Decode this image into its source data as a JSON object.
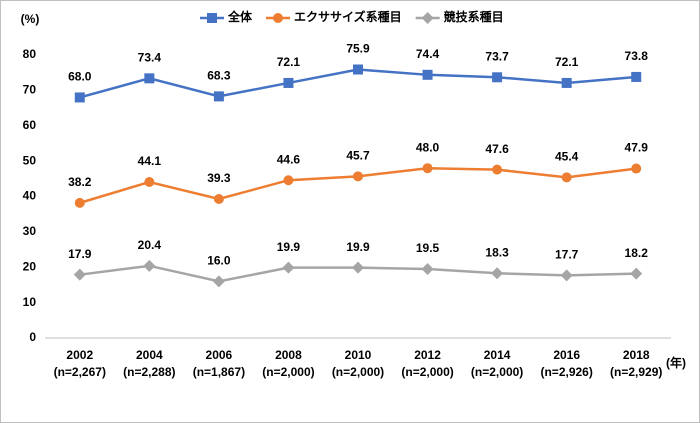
{
  "chart_data": {
    "type": "line",
    "y_axis_label": "(%)",
    "x_axis_unit": "(年)",
    "categories": [
      "2002",
      "2004",
      "2006",
      "2008",
      "2010",
      "2012",
      "2014",
      "2016",
      "2018"
    ],
    "sample_sizes": [
      "(n=2,267)",
      "(n=2,288)",
      "(n=1,867)",
      "(n=2,000)",
      "(n=2,000)",
      "(n=2,000)",
      "(n=2,000)",
      "(n=2,926)",
      "(n=2,929)"
    ],
    "ylim": [
      0,
      80
    ],
    "yticks": [
      0,
      10,
      20,
      30,
      40,
      50,
      60,
      70,
      80
    ],
    "grid": false,
    "legend": "top",
    "series": [
      {
        "name": "全体",
        "color": "#4472c4",
        "marker": "square",
        "values": [
          68.0,
          73.4,
          68.3,
          72.1,
          75.9,
          74.4,
          73.7,
          72.1,
          73.8
        ],
        "value_labels": [
          "68.0",
          "73.4",
          "68.3",
          "72.1",
          "75.9",
          "74.4",
          "73.7",
          "72.1",
          "73.8"
        ]
      },
      {
        "name": "エクササイズ系種目",
        "color": "#ed7d31",
        "marker": "circle",
        "values": [
          38.2,
          44.1,
          39.3,
          44.6,
          45.7,
          48.0,
          47.6,
          45.4,
          47.9
        ],
        "value_labels": [
          "38.2",
          "44.1",
          "39.3",
          "44.6",
          "45.7",
          "48.0",
          "47.6",
          "45.4",
          "47.9"
        ]
      },
      {
        "name": "競技系種目",
        "color": "#a5a5a5",
        "marker": "diamond",
        "values": [
          17.9,
          20.4,
          16.0,
          19.9,
          19.9,
          19.5,
          18.3,
          17.7,
          18.2
        ],
        "value_labels": [
          "17.9",
          "20.4",
          "16.0",
          "19.9",
          "19.9",
          "19.5",
          "18.3",
          "17.7",
          "18.2"
        ]
      }
    ]
  }
}
